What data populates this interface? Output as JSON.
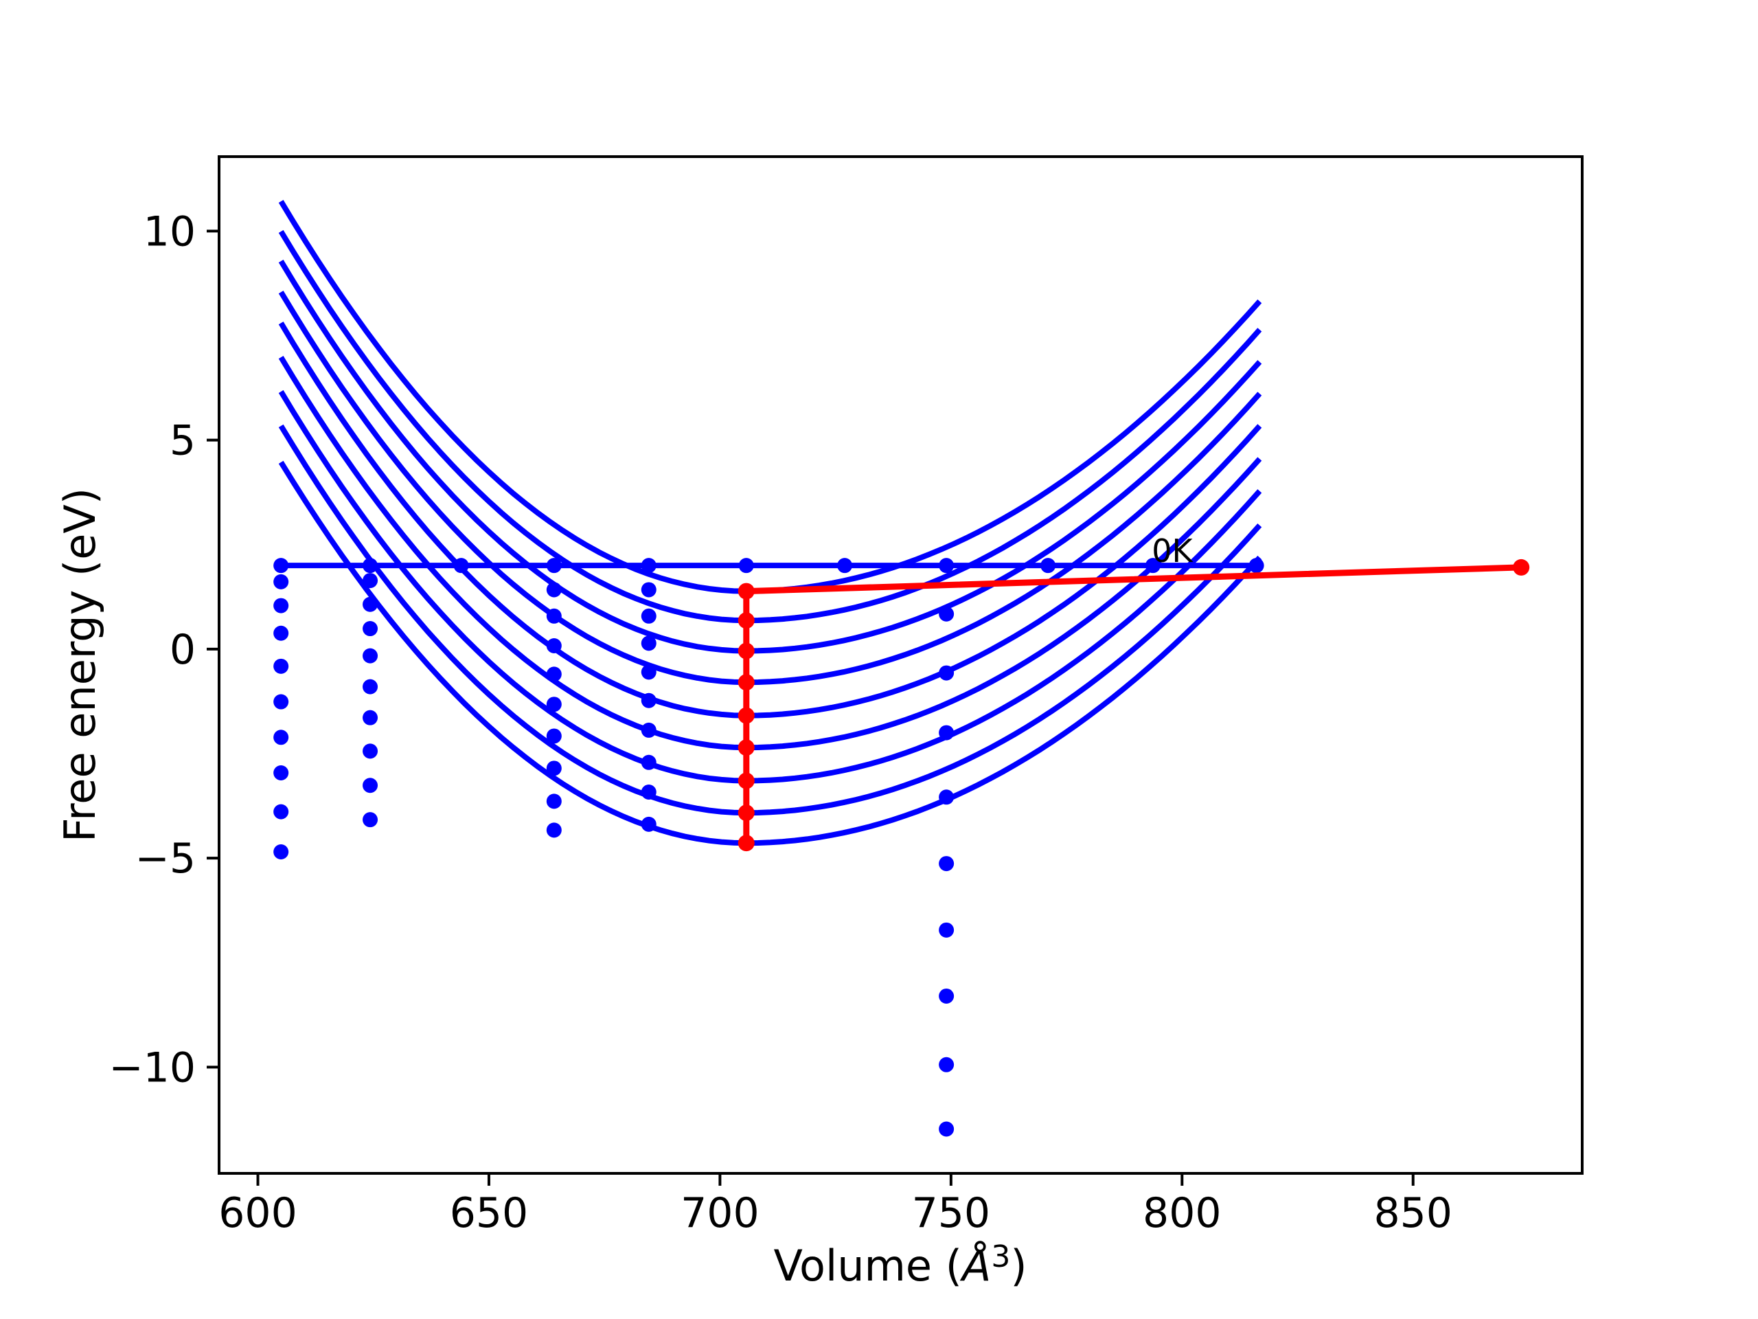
{
  "figure": {
    "xlabel_parts": {
      "prefix": "Volume (",
      "angstrom": "Å",
      "exponent": "3",
      "suffix": ")"
    },
    "ylabel": "Free energy (eV)",
    "annotation": "0K"
  },
  "chart_data": {
    "type": "line+scatter",
    "title": "",
    "xlabel": "Volume (Å³)",
    "ylabel": "Free energy (eV)",
    "xlim": [
      591.6,
      886.6
    ],
    "ylim": [
      -12.54,
      11.78
    ],
    "xticks": [
      600,
      650,
      700,
      750,
      800,
      850
    ],
    "yticks": [
      -10,
      -5,
      0,
      5,
      10
    ],
    "grid": false,
    "legend": null,
    "colors": {
      "curves": "#0000ff",
      "points": "#0000ff",
      "equilibrium": "#ff0000",
      "axis": "#000000"
    },
    "volumes": [
      605.0,
      624.3,
      644.0,
      664.1,
      684.6,
      705.7,
      727.0,
      749.0,
      771.0,
      793.7,
      816.1
    ],
    "zero_k_line": {
      "f": 2.0,
      "v_start": 605.0,
      "v_end": 816.5,
      "label": "0K",
      "label_v": 797.9,
      "label_f": 2.32
    },
    "eos_curves": {
      "v_start": 605.0,
      "v_end": 816.8,
      "v_min": 705.7,
      "curves": [
        {
          "f_min": 1.385,
          "f_left": 10.71,
          "f_right": 8.32
        },
        {
          "f_min": 0.685,
          "f_left": 9.99,
          "f_right": 7.64
        },
        {
          "f_min": -0.044,
          "f_left": 9.28,
          "f_right": 6.87
        },
        {
          "f_min": -0.794,
          "f_left": 8.54,
          "f_right": 6.11
        },
        {
          "f_min": -1.589,
          "f_left": 7.8,
          "f_right": 5.34
        },
        {
          "f_min": -2.355,
          "f_left": 6.98,
          "f_right": 4.55
        },
        {
          "f_min": -3.15,
          "f_left": 6.16,
          "f_right": 3.78
        },
        {
          "f_min": -3.916,
          "f_left": 5.34,
          "f_right": 2.96
        },
        {
          "f_min": -4.639,
          "f_left": 4.47,
          "f_right": 2.19
        }
      ]
    },
    "scatter": [
      {
        "v": 605.0,
        "f_values": [
          2.0,
          1.61,
          1.04,
          0.38,
          -0.41,
          -1.26,
          -2.11,
          -2.96,
          -3.89,
          -4.85
        ]
      },
      {
        "v": 624.3,
        "f_values": [
          2.0,
          1.64,
          1.07,
          0.49,
          -0.16,
          -0.9,
          -1.64,
          -2.44,
          -3.26,
          -4.08
        ]
      },
      {
        "v": 644.0,
        "f_values": [
          2.0
        ]
      },
      {
        "v": 664.1,
        "f_values": [
          2.0,
          1.42,
          0.79,
          0.08,
          -0.6,
          -1.32,
          -2.08,
          -2.85,
          -3.64,
          -4.33
        ]
      },
      {
        "v": 684.6,
        "f_values": [
          2.0,
          1.42,
          0.79,
          0.14,
          -0.55,
          -1.23,
          -1.94,
          -2.71,
          -3.42,
          -4.19
        ]
      },
      {
        "v": 705.7,
        "f_values": [
          2.0
        ]
      },
      {
        "v": 727.0,
        "f_values": [
          2.0
        ]
      },
      {
        "v": 749.0,
        "f_values": [
          2.0,
          0.84,
          -0.57,
          -2.0,
          -3.54,
          -5.13,
          -6.72,
          -8.3,
          -9.94,
          -11.48
        ]
      },
      {
        "v": 771.0,
        "f_values": [
          2.0
        ]
      },
      {
        "v": 793.7,
        "f_values": [
          2.0
        ]
      },
      {
        "v": 816.1,
        "f_values": [
          2.0
        ]
      }
    ],
    "equilibrium_path": [
      {
        "v": 873.4,
        "f": 1.955
      },
      {
        "v": 705.7,
        "f": 1.385
      },
      {
        "v": 705.7,
        "f": 0.685
      },
      {
        "v": 705.7,
        "f": -0.044
      },
      {
        "v": 705.7,
        "f": -0.794
      },
      {
        "v": 705.7,
        "f": -1.589
      },
      {
        "v": 705.7,
        "f": -2.355
      },
      {
        "v": 705.7,
        "f": -3.15
      },
      {
        "v": 705.7,
        "f": -3.916
      },
      {
        "v": 705.7,
        "f": -4.639
      }
    ]
  }
}
